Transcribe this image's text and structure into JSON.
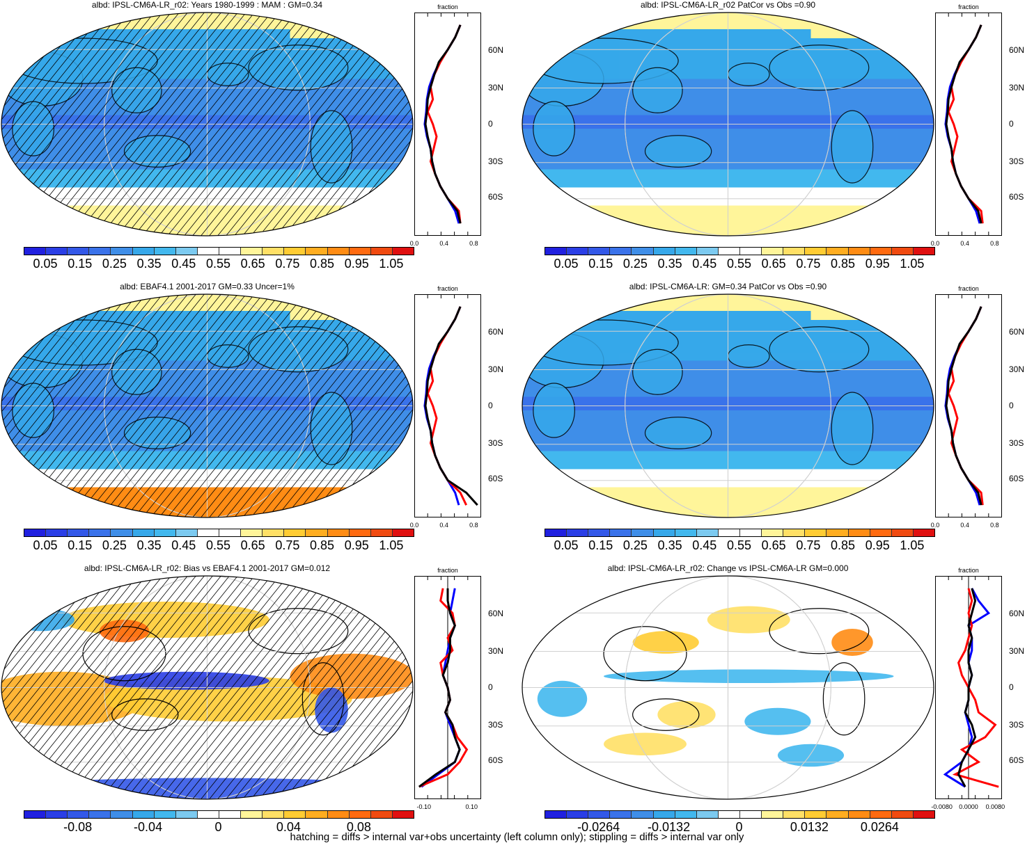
{
  "colors": {
    "abs_scale": [
      "#2020e0",
      "#2a3ee6",
      "#3358e8",
      "#3a72ea",
      "#3f8ee8",
      "#36a8ea",
      "#42b8ee",
      "#7ccaf0",
      "#ffffff",
      "#ffffff",
      "#fff59a",
      "#ffe066",
      "#ffcc33",
      "#ffad20",
      "#ff8c14",
      "#ff6a10",
      "#f04a10",
      "#e01010"
    ],
    "diff_scale": [
      "#2020e0",
      "#2a3ee6",
      "#3358e8",
      "#3a72ea",
      "#3f8ee8",
      "#36a8ea",
      "#42b8ee",
      "#7ccaf0",
      "#ffffff",
      "#ffffff",
      "#fff59a",
      "#ffe066",
      "#ffcc33",
      "#ffad20",
      "#ff8c14",
      "#ff6a10",
      "#f04a10",
      "#e01010"
    ],
    "model_line": "#ff0000",
    "alt_line": "#0000ff",
    "obs_line": "#000000"
  },
  "chart_data": [
    {
      "type": "heatmap",
      "id": "p1",
      "title": "albd: IPSL-CM6A-LR_r02: Years 1980-1999 : MAM : GM=0.34",
      "colorbar_labels": [
        "0.05",
        "0.15",
        "0.25",
        "0.35",
        "0.45",
        "0.55",
        "0.65",
        "0.75",
        "0.85",
        "0.95",
        "1.05"
      ],
      "lat_labels": [
        "60N",
        "30N",
        "0",
        "30S",
        "60S"
      ],
      "x_ticks": [
        "0.0",
        "0.4",
        "0.8"
      ],
      "x_range": [
        0,
        0.9
      ],
      "axis_top_label": "fraction",
      "hatched": true,
      "profile": {
        "lat": [
          80,
          70,
          60,
          50,
          40,
          30,
          20,
          10,
          0,
          -10,
          -20,
          -30,
          -40,
          -50,
          -60,
          -70,
          -80
        ],
        "model": [
          0.62,
          0.55,
          0.45,
          0.35,
          0.27,
          0.22,
          0.25,
          0.18,
          0.25,
          0.3,
          0.26,
          0.22,
          0.28,
          0.35,
          0.45,
          0.6,
          0.62
        ],
        "obs": [
          0.62,
          0.55,
          0.45,
          0.33,
          0.27,
          0.22,
          0.18,
          0.17,
          0.15,
          0.18,
          0.22,
          0.24,
          0.28,
          0.35,
          0.45,
          0.58,
          0.62
        ],
        "alt": [
          0.62,
          0.55,
          0.45,
          0.34,
          0.26,
          0.2,
          0.17,
          0.16,
          0.14,
          0.17,
          0.22,
          0.24,
          0.28,
          0.35,
          0.45,
          0.55,
          0.6
        ]
      }
    },
    {
      "type": "heatmap",
      "id": "p2",
      "title": "albd: IPSL-CM6A-LR_r02 PatCor vs Obs =0.90",
      "colorbar_labels": [
        "0.05",
        "0.15",
        "0.25",
        "0.35",
        "0.45",
        "0.55",
        "0.65",
        "0.75",
        "0.85",
        "0.95",
        "1.05"
      ],
      "lat_labels": [
        "60N",
        "30N",
        "0",
        "30S",
        "60S"
      ],
      "x_ticks": [
        "0.0",
        "0.4",
        "0.8"
      ],
      "x_range": [
        0,
        0.9
      ],
      "axis_top_label": "fraction",
      "hatched": false,
      "profile": {
        "lat": [
          80,
          70,
          60,
          50,
          40,
          30,
          20,
          10,
          0,
          -10,
          -20,
          -30,
          -40,
          -50,
          -60,
          -70,
          -80
        ],
        "model": [
          0.62,
          0.55,
          0.45,
          0.35,
          0.27,
          0.22,
          0.25,
          0.18,
          0.25,
          0.3,
          0.26,
          0.22,
          0.28,
          0.35,
          0.45,
          0.62,
          0.64
        ],
        "obs": [
          0.62,
          0.55,
          0.45,
          0.33,
          0.27,
          0.22,
          0.18,
          0.17,
          0.15,
          0.18,
          0.22,
          0.24,
          0.28,
          0.35,
          0.45,
          0.58,
          0.62
        ],
        "alt": [
          0.62,
          0.55,
          0.45,
          0.34,
          0.26,
          0.2,
          0.17,
          0.16,
          0.14,
          0.17,
          0.22,
          0.24,
          0.28,
          0.35,
          0.45,
          0.55,
          0.6
        ]
      }
    },
    {
      "type": "heatmap",
      "id": "p3",
      "title": "albd: EBAF4.1 2001-2017 GM=0.33 Uncer=1%",
      "colorbar_labels": [
        "0.05",
        "0.15",
        "0.25",
        "0.35",
        "0.45",
        "0.55",
        "0.65",
        "0.75",
        "0.85",
        "0.95",
        "1.05"
      ],
      "lat_labels": [
        "60N",
        "30N",
        "0",
        "30S",
        "60S"
      ],
      "x_ticks": [
        "0.0",
        "0.4",
        "0.8"
      ],
      "x_range": [
        0,
        0.9
      ],
      "axis_top_label": "fraction",
      "hatched": true,
      "profile": {
        "lat": [
          80,
          70,
          60,
          50,
          40,
          30,
          20,
          10,
          0,
          -10,
          -20,
          -30,
          -40,
          -50,
          -60,
          -70,
          -80
        ],
        "model": [
          0.62,
          0.55,
          0.45,
          0.35,
          0.27,
          0.22,
          0.25,
          0.18,
          0.25,
          0.3,
          0.26,
          0.22,
          0.28,
          0.35,
          0.45,
          0.62,
          0.7
        ],
        "obs": [
          0.62,
          0.55,
          0.45,
          0.33,
          0.27,
          0.22,
          0.18,
          0.17,
          0.15,
          0.18,
          0.22,
          0.24,
          0.28,
          0.35,
          0.45,
          0.7,
          0.85
        ],
        "alt": [
          0.62,
          0.55,
          0.45,
          0.34,
          0.26,
          0.2,
          0.17,
          0.16,
          0.14,
          0.17,
          0.22,
          0.24,
          0.28,
          0.35,
          0.45,
          0.55,
          0.6
        ]
      }
    },
    {
      "type": "heatmap",
      "id": "p4",
      "title": "albd: IPSL-CM6A-LR: GM=0.34 PatCor vs Obs =0.90",
      "colorbar_labels": [
        "0.05",
        "0.15",
        "0.25",
        "0.35",
        "0.45",
        "0.55",
        "0.65",
        "0.75",
        "0.85",
        "0.95",
        "1.05"
      ],
      "lat_labels": [
        "60N",
        "30N",
        "0",
        "30S",
        "60S"
      ],
      "x_ticks": [
        "0.0",
        "0.4",
        "0.8"
      ],
      "x_range": [
        0,
        0.9
      ],
      "axis_top_label": "fraction",
      "hatched": false,
      "profile": {
        "lat": [
          80,
          70,
          60,
          50,
          40,
          30,
          20,
          10,
          0,
          -10,
          -20,
          -30,
          -40,
          -50,
          -60,
          -70,
          -80
        ],
        "model": [
          0.62,
          0.55,
          0.45,
          0.35,
          0.27,
          0.22,
          0.25,
          0.18,
          0.25,
          0.3,
          0.26,
          0.22,
          0.28,
          0.35,
          0.45,
          0.62,
          0.64
        ],
        "obs": [
          0.62,
          0.55,
          0.45,
          0.33,
          0.27,
          0.22,
          0.18,
          0.17,
          0.15,
          0.18,
          0.22,
          0.24,
          0.28,
          0.35,
          0.45,
          0.58,
          0.62
        ],
        "alt": [
          0.62,
          0.55,
          0.45,
          0.34,
          0.26,
          0.2,
          0.17,
          0.16,
          0.14,
          0.17,
          0.22,
          0.24,
          0.28,
          0.35,
          0.45,
          0.55,
          0.6
        ]
      }
    },
    {
      "type": "heatmap",
      "id": "p5",
      "title": "albd: IPSL-CM6A-LR_r02: Bias vs EBAF4.1 2001-2017 GM=0.012",
      "colorbar_labels": [
        "-0.08",
        "-0.04",
        "0",
        "0.04",
        "0.08"
      ],
      "lat_labels": [
        "60N",
        "30N",
        "0",
        "30S",
        "60S"
      ],
      "x_ticks": [
        "-0.10",
        "0.10"
      ],
      "x_range": [
        -0.14,
        0.14
      ],
      "axis_top_label": "fraction",
      "hatched": true,
      "profile": {
        "lat": [
          80,
          70,
          60,
          50,
          40,
          30,
          20,
          10,
          0,
          -10,
          -20,
          -30,
          -40,
          -50,
          -60,
          -70,
          -80
        ],
        "model": [
          -0.02,
          -0.03,
          0.02,
          0.03,
          0.0,
          0.02,
          -0.03,
          -0.02,
          0.0,
          0.01,
          -0.01,
          0.02,
          0.04,
          0.08,
          0.05,
          0.0,
          -0.12
        ],
        "obs": [
          0.0,
          0.0,
          0.01,
          0.03,
          0.01,
          0.01,
          0.0,
          -0.02,
          0.0,
          0.01,
          -0.01,
          0.02,
          0.03,
          0.05,
          0.03,
          -0.05,
          -0.12
        ],
        "alt": [
          0.03,
          0.02,
          0.01,
          0.03,
          0.01,
          0.0,
          -0.01,
          -0.02,
          0.0,
          0.01,
          -0.01,
          0.01,
          0.03,
          0.05,
          0.03,
          -0.04,
          -0.11
        ]
      }
    },
    {
      "type": "heatmap",
      "id": "p6",
      "title": "albd: IPSL-CM6A-LR_r02: Change vs IPSL-CM6A-LR GM=0.000",
      "colorbar_labels": [
        "-0.0264",
        "-0.0132",
        "0",
        "0.0132",
        "0.0264"
      ],
      "lat_labels": [
        "60N",
        "30N",
        "0",
        "30S",
        "60S"
      ],
      "x_ticks": [
        "-0.0080",
        "0.0000",
        "0.0080"
      ],
      "x_range": [
        -0.01,
        0.01
      ],
      "axis_top_label": "fraction",
      "hatched": false,
      "profile": {
        "lat": [
          80,
          70,
          60,
          50,
          40,
          30,
          20,
          10,
          0,
          -10,
          -20,
          -30,
          -40,
          -50,
          -60,
          -70,
          -80
        ],
        "model": [
          0.0,
          0.001,
          0.0,
          0.001,
          0.0,
          -0.001,
          -0.003,
          -0.002,
          0.0,
          0.002,
          0.003,
          0.008,
          0.005,
          -0.002,
          0.003,
          -0.004,
          0.009
        ],
        "obs": [
          0.001,
          0.002,
          0.001,
          0.0,
          0.001,
          0.0,
          0.0,
          0.001,
          0.0,
          0.0,
          -0.001,
          0.001,
          0.002,
          0.0,
          -0.002,
          -0.003,
          -0.001
        ],
        "alt": [
          0.001,
          0.003,
          0.006,
          0.0,
          0.001,
          0.001,
          0.0,
          0.001,
          0.0,
          0.0,
          -0.001,
          0.0,
          0.001,
          0.0,
          -0.002,
          -0.007,
          -0.001
        ]
      }
    }
  ],
  "footer": "hatching = diffs > internal var+obs uncertainty (left column only); stippling = diffs > internal var only"
}
